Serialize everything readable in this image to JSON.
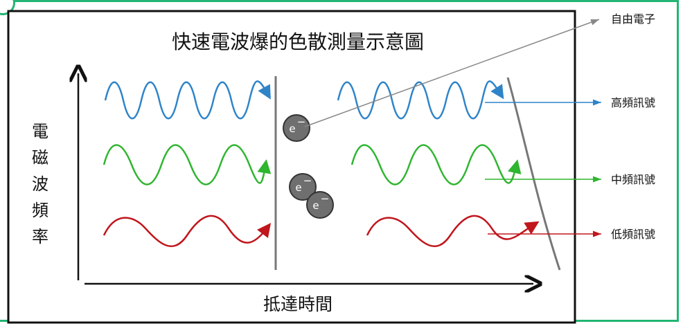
{
  "title": "快速電波爆的色散測量示意圖",
  "y_axis_label": [
    "電",
    "磁",
    "波",
    "頻",
    "率"
  ],
  "x_axis_label": "抵達時間",
  "labels": {
    "free_electron": "自由電子",
    "high_freq": "高頻訊號",
    "mid_freq": "中頻訊號",
    "low_freq": "低頻訊號"
  },
  "electron_symbol": "e",
  "electron_charge": "−",
  "colors": {
    "high": "#2f84c8",
    "mid": "#2fb52f",
    "low": "#c0161c",
    "electron_fill": "#6f6f6f",
    "border_green": "#22b573",
    "annotation_line": "#888888"
  }
}
